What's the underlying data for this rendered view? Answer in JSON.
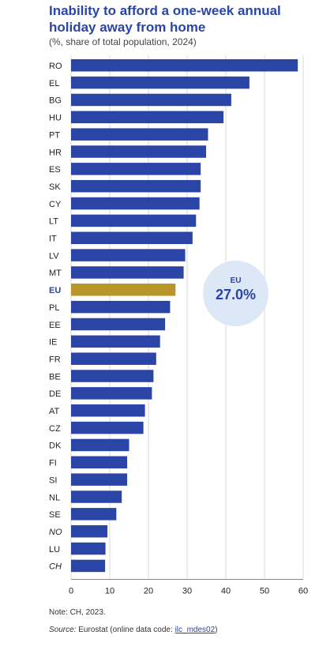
{
  "title": "Inability to afford a one-week annual holiday away from home",
  "subtitle": "(%, share of total population, 2024)",
  "note": "Note: CH, 2023.",
  "source": {
    "label": "Source:",
    "text": "Eurostat (online data code: ",
    "code": "ilc_mdes02",
    "close": ")"
  },
  "callout": {
    "label": "EU",
    "value": "27.0%"
  },
  "colors": {
    "bar": "#2b45a6",
    "highlight": "#b8962a",
    "grid": "#d9d9d9",
    "axis": "#888888"
  },
  "chart_data": {
    "type": "bar",
    "orientation": "horizontal",
    "categories": [
      "RO",
      "EL",
      "BG",
      "HU",
      "PT",
      "HR",
      "ES",
      "SK",
      "CY",
      "LT",
      "IT",
      "LV",
      "MT",
      "EU",
      "PL",
      "EE",
      "IE",
      "FR",
      "BE",
      "DE",
      "AT",
      "CZ",
      "DK",
      "FI",
      "SI",
      "NL",
      "SE",
      "NO",
      "LU",
      "CH"
    ],
    "values": [
      58.6,
      46.1,
      41.4,
      39.4,
      35.4,
      34.9,
      33.5,
      33.5,
      33.2,
      32.3,
      31.4,
      29.5,
      29.1,
      27.0,
      25.6,
      24.3,
      23.0,
      22.0,
      21.3,
      20.9,
      19.1,
      18.7,
      15.0,
      14.5,
      14.5,
      13.1,
      11.7,
      9.4,
      8.9,
      8.8
    ],
    "highlight": [
      "EU"
    ],
    "italic": [
      "NO",
      "CH"
    ],
    "xlim": [
      0,
      60
    ],
    "xticks": [
      0,
      10,
      20,
      30,
      40,
      50,
      60
    ],
    "grid": true
  }
}
